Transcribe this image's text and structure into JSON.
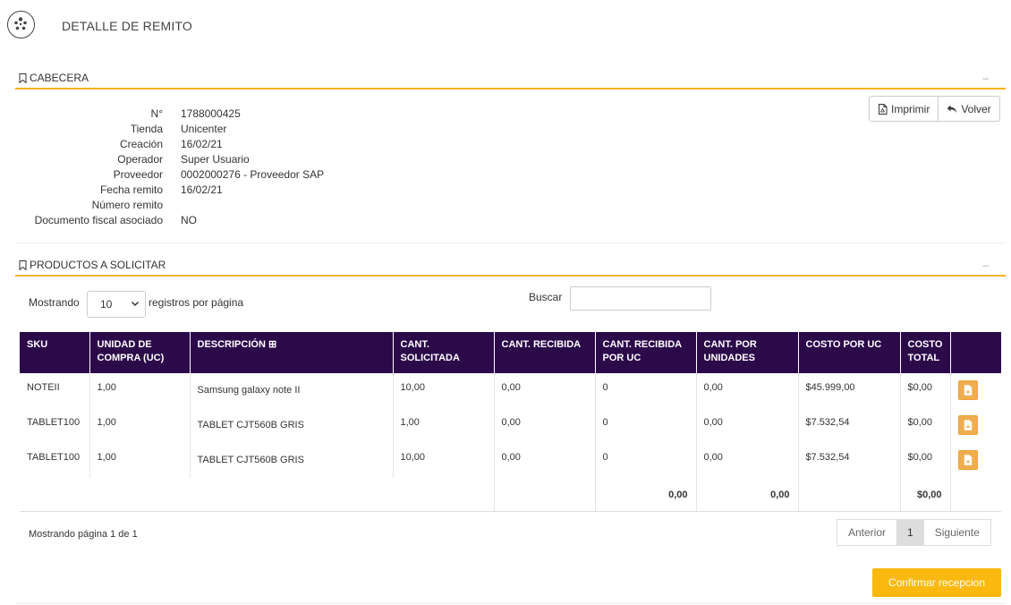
{
  "header": {
    "title": "DETALLE DE REMITO",
    "logo_icon": "logo-icon"
  },
  "sections": {
    "cabecera": {
      "title": "CABECERA",
      "collapse": "–"
    },
    "productos": {
      "title": "PRODUCTOS A SOLICITAR",
      "collapse": "–"
    }
  },
  "actions": {
    "print_label": "Imprimir",
    "back_label": "Volver"
  },
  "info": [
    {
      "label": "N°",
      "value": "1788000425"
    },
    {
      "label": "Tienda",
      "value": "Unicenter"
    },
    {
      "label": "Creación",
      "value": "16/02/21"
    },
    {
      "label": "Operador",
      "value": "Super Usuario"
    },
    {
      "label": "Proveedor",
      "value": "0002000276 - Proveedor SAP"
    },
    {
      "label": "Fecha remito",
      "value": "16/02/21"
    },
    {
      "label": "Número remito",
      "value": ""
    },
    {
      "label": "Documento fiscal asociado",
      "value": "NO"
    }
  ],
  "controls": {
    "showing_label": "Mostrando",
    "page_size": "10",
    "per_page_label": "registros por página",
    "search_label": "Buscar",
    "search_value": ""
  },
  "table": {
    "headers": [
      "SKU",
      "UNIDAD DE COMPRA (UC)",
      "DESCRIPCIÓN",
      "CANT. SOLICITADA",
      "CANT. RECIBIDA",
      "CANT. RECIBIDA POR UC",
      "CANT. POR UNIDADES",
      "COSTO POR UC",
      "COSTO TOTAL",
      ""
    ],
    "expand_glyph": "⊞",
    "rows": [
      {
        "sku": "NOTEII",
        "uc": "1,00",
        "desc": "Samsung galaxy note II",
        "solicitada": "10,00",
        "recibida": "0,00",
        "recibida_uc": "0",
        "unidades": "0,00",
        "costo_uc": "$45.999,00",
        "costo_total": "$0,00"
      },
      {
        "sku": "TABLET100",
        "uc": "1,00",
        "desc": "TABLET CJT560B GRIS",
        "solicitada": "1,00",
        "recibida": "0,00",
        "recibida_uc": "0",
        "unidades": "0,00",
        "costo_uc": "$7.532,54",
        "costo_total": "$0,00"
      },
      {
        "sku": "TABLET100",
        "uc": "1,00",
        "desc": "TABLET CJT560B GRIS",
        "solicitada": "10,00",
        "recibida": "0,00",
        "recibida_uc": "0",
        "unidades": "0,00",
        "costo_uc": "$7.532,54",
        "costo_total": "$0,00"
      }
    ],
    "totals": {
      "recibida_uc": "0,00",
      "unidades": "0,00",
      "costo_total": "$0,00"
    }
  },
  "pagination": {
    "info": "Mostrando página 1 de 1",
    "prev": "Anterior",
    "current": "1",
    "next": "Siguiente"
  },
  "confirm_label": "Confirmar recepcion",
  "colors": {
    "accent": "#f5b31b",
    "table_header": "#2c0a4a",
    "confirm": "#fbb80f",
    "pdf": "#f0ad4e"
  }
}
